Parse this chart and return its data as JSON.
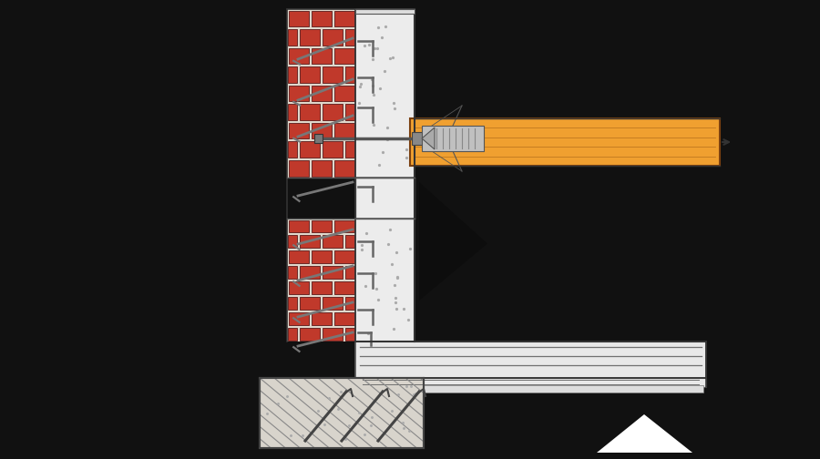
{
  "bg": "#111111",
  "brick_fc": "#c0392b",
  "brick_mortar": "#e0d8cc",
  "brick_ec": "#5a1a1a",
  "concrete_fc": "#ececec",
  "concrete_ec": "#666666",
  "concrete_speckle": "#aaaaaa",
  "beam_fc": "#f0a030",
  "beam_ec": "#7a4010",
  "beam_grain": "#c07820",
  "found_fc": "#d8d4cc",
  "found_hatch": "#888888",
  "found_ec": "#444444",
  "slab_fc": "#e8e8e8",
  "slab_ec": "#555555",
  "rebar": "#707070",
  "bolt": "#555555",
  "anchor_fc": "#c0c0c0",
  "anchor_ec": "#555555",
  "outline": "#333333",
  "black": "#0d0d0d",
  "white": "#ffffff",
  "near_white": "#f5f5f5",
  "fig_w": 9.0,
  "fig_h": 5.04,
  "dpi": 100
}
